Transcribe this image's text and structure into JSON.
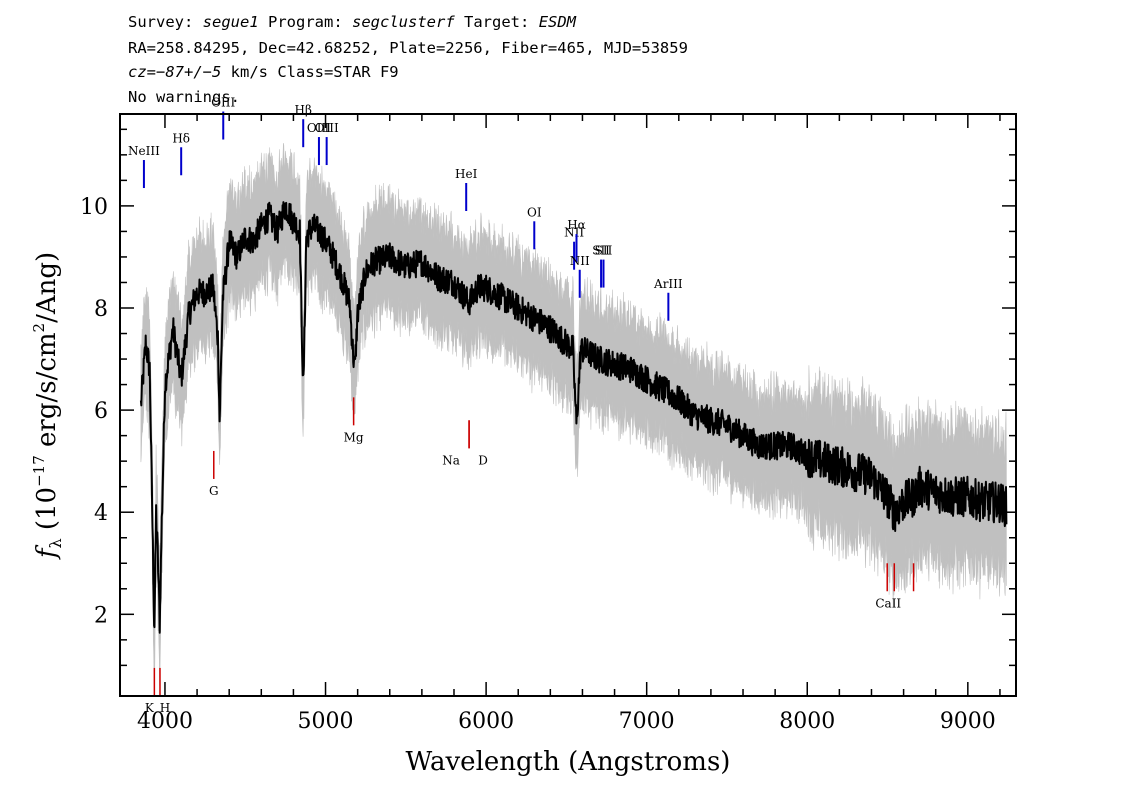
{
  "header": {
    "line1": {
      "survey_label": "Survey:",
      "survey": "segue1",
      "program_label": "Program:",
      "program": "segclusterf",
      "target_label": "Target:",
      "target": "ESDM"
    },
    "line2": "RA=258.84295, Dec=42.68252, Plate=2256, Fiber=465, MJD=53859",
    "line3": {
      "cz_label": "cz",
      "cz_value": "=−87+/−5",
      "rest": " km/s Class=STAR F9"
    },
    "line4": "No warnings."
  },
  "colors": {
    "flux": "#000000",
    "error_band": "#c0c0c0",
    "emission": "#0000cc",
    "absorption": "#cc0000"
  },
  "chart_data": {
    "type": "line",
    "xlabel": "Wavelength (Angstroms)",
    "ylabel_prefix": "f",
    "ylabel_sub": "λ",
    "ylabel_rest": " (10",
    "ylabel_exp": "−17",
    "ylabel_tail": " erg/s/cm",
    "ylabel_exp2": "2",
    "ylabel_end": "/Ang)",
    "xlim": [
      3720,
      9300
    ],
    "ylim": [
      0.4,
      11.8
    ],
    "xticks": [
      4000,
      5000,
      6000,
      7000,
      8000,
      9000
    ],
    "yticks": [
      2,
      4,
      6,
      8,
      10
    ],
    "series": [
      {
        "x": [
          3850,
          3880,
          3905,
          3920,
          3934,
          3945,
          3955,
          3968,
          3980,
          4000,
          4050,
          4101,
          4150,
          4200,
          4250,
          4300,
          4330,
          4340,
          4360,
          4383,
          4400,
          4450,
          4500,
          4550,
          4600,
          4650,
          4700,
          4750,
          4800,
          4840,
          4861,
          4880,
          4920,
          4960,
          5000,
          5050,
          5100,
          5150,
          5172,
          5183,
          5200,
          5250,
          5300,
          5400,
          5500,
          5600,
          5700,
          5800,
          5893,
          5950,
          6000,
          6100,
          6200,
          6300,
          6400,
          6500,
          6540,
          6563,
          6590,
          6650,
          6700,
          6800,
          6900,
          7000,
          7100,
          7200,
          7300,
          7400,
          7500,
          7600,
          7700,
          7800,
          7900,
          8000,
          8100,
          8200,
          8300,
          8400,
          8498,
          8542,
          8600,
          8662,
          8700,
          8800,
          8900,
          9000,
          9100,
          9200,
          9240
        ],
        "y": [
          6.1,
          7.3,
          6.8,
          4.2,
          1.6,
          4.0,
          3.2,
          1.8,
          3.8,
          6.5,
          7.6,
          6.6,
          7.9,
          8.3,
          8.3,
          8.4,
          7.4,
          5.8,
          8.2,
          8.8,
          9.3,
          9.0,
          9.4,
          9.3,
          9.6,
          9.8,
          9.5,
          10.0,
          9.7,
          9.5,
          6.3,
          9.4,
          9.6,
          9.5,
          9.3,
          9.0,
          8.6,
          8.1,
          7.1,
          6.8,
          7.9,
          8.7,
          8.9,
          9.0,
          8.8,
          8.9,
          8.6,
          8.5,
          8.1,
          8.4,
          8.4,
          8.2,
          8.0,
          7.8,
          7.6,
          7.3,
          7.2,
          5.7,
          7.2,
          7.1,
          7.0,
          6.9,
          6.8,
          6.6,
          6.4,
          6.2,
          5.9,
          5.8,
          5.7,
          5.5,
          5.3,
          5.3,
          5.3,
          5.1,
          5.0,
          4.9,
          4.8,
          4.7,
          4.3,
          4.0,
          4.2,
          4.3,
          4.5,
          4.4,
          4.3,
          4.3,
          4.2,
          4.2,
          4.1
        ]
      }
    ],
    "emission_lines": [
      {
        "label": "NeIII",
        "x": 3869,
        "y": 10.35
      },
      {
        "label": "Hδ",
        "x": 4101,
        "y": 10.6
      },
      {
        "label": "OIII",
        "x": 4363,
        "y": 11.3
      },
      {
        "label": "Hβ",
        "x": 4861,
        "y": 11.15
      },
      {
        "label": "OIII",
        "x": 4959,
        "y": 10.8
      },
      {
        "label": "OIII",
        "x": 5007,
        "y": 10.8
      },
      {
        "label": "HeI",
        "x": 5876,
        "y": 9.9
      },
      {
        "label": "OI",
        "x": 6300,
        "y": 9.15
      },
      {
        "label": "NII",
        "x": 6548,
        "y": 8.75
      },
      {
        "label": "Hα",
        "x": 6563,
        "y": 8.9
      },
      {
        "label": "NII",
        "x": 6583,
        "y": 8.2
      },
      {
        "label": "SII",
        "x": 6716,
        "y": 8.4
      },
      {
        "label": "SII",
        "x": 6731,
        "y": 8.4
      },
      {
        "label": "ArIII",
        "x": 7135,
        "y": 7.75
      }
    ],
    "absorption_lines": [
      {
        "label": "K",
        "x": 3934,
        "y": 0.95
      },
      {
        "label": "H",
        "x": 3969,
        "y": 0.95
      },
      {
        "label": "G",
        "x": 4304,
        "y": 5.2
      },
      {
        "label": "Mg",
        "x": 5175,
        "y": 6.25
      },
      {
        "label": "Na",
        "x": 5894,
        "y": 5.8
      },
      {
        "label": "D",
        "x": 5894,
        "y": 5.8
      },
      {
        "label": "CaII",
        "x": 8498,
        "y": 3.0
      },
      {
        "label": "CaII",
        "x": 8542,
        "y": 3.0
      },
      {
        "label": "CaII",
        "x": 8662,
        "y": 3.0
      }
    ]
  }
}
